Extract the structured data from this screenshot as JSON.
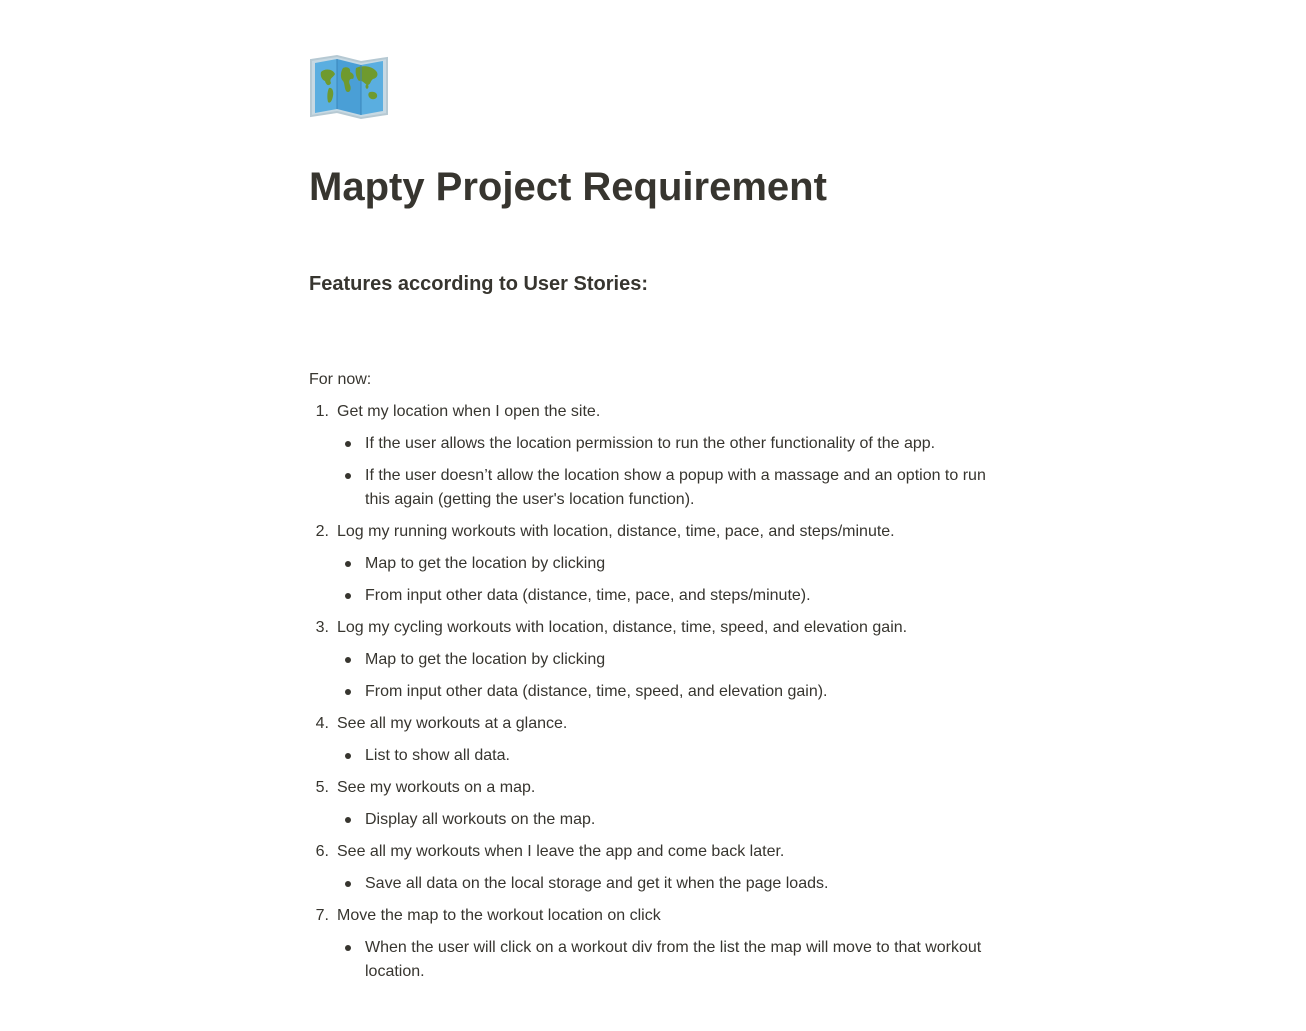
{
  "page": {
    "icon": "world-map-icon",
    "title": "Mapty Project Requirement",
    "section_heading": "Features according to User Stories:",
    "intro": "For now:"
  },
  "steps": [
    {
      "number": "1.",
      "text": "Get my location when I open the site.",
      "bullets": [
        "If the user allows the location permission to run the other functionality of the app.",
        "If the user doesn’t allow the location show a popup with a massage and an option to run this again (getting the user's location function)."
      ]
    },
    {
      "number": "2.",
      "text": "Log my running workouts with location, distance, time, pace, and steps/minute.",
      "bullets": [
        "Map to get the location by clicking",
        "From input other data (distance, time, pace, and steps/minute)."
      ]
    },
    {
      "number": "3.",
      "text": "Log my cycling workouts with location, distance, time, speed, and elevation gain.",
      "bullets": [
        "Map to get the location by clicking",
        "From input other data (distance, time, speed, and elevation gain)."
      ]
    },
    {
      "number": "4.",
      "text": "See all my workouts at a glance.",
      "bullets": [
        "List to show all data."
      ]
    },
    {
      "number": "5.",
      "text": "See my workouts on a map.",
      "bullets": [
        "Display all workouts on the map."
      ]
    },
    {
      "number": "6.",
      "text": "See all my workouts when I leave the app and come back later.",
      "bullets": [
        "Save all data on the local storage and get it when the page loads."
      ]
    },
    {
      "number": "7.",
      "text": "Move the map to the workout location on click",
      "bullets": [
        "When the user will click on a workout div from the list the map will move to that workout location."
      ]
    }
  ]
}
